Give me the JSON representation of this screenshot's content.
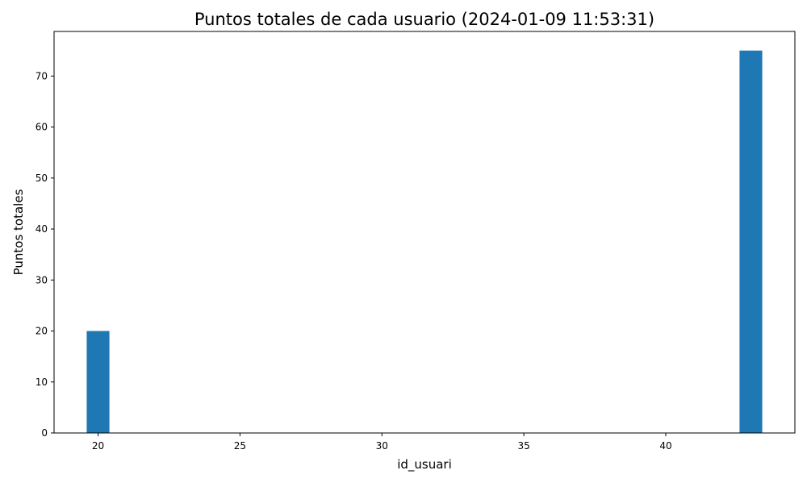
{
  "chart_data": {
    "type": "bar",
    "title": "Puntos totales de cada usuario (2024-01-09 11:53:31)",
    "xlabel": "id_usuari",
    "ylabel": "Puntos totales",
    "x": [
      20,
      43
    ],
    "values": [
      20,
      75
    ],
    "bar_width": 0.8,
    "xlim": [
      18.45,
      44.55
    ],
    "ylim": [
      0,
      78.75
    ],
    "xticks": [
      20,
      25,
      30,
      35,
      40
    ],
    "yticks": [
      0,
      10,
      20,
      30,
      40,
      50,
      60,
      70
    ],
    "grid": false,
    "colors": {
      "bar": "#1f77b4",
      "axes": "#000000",
      "background": "#ffffff"
    }
  }
}
